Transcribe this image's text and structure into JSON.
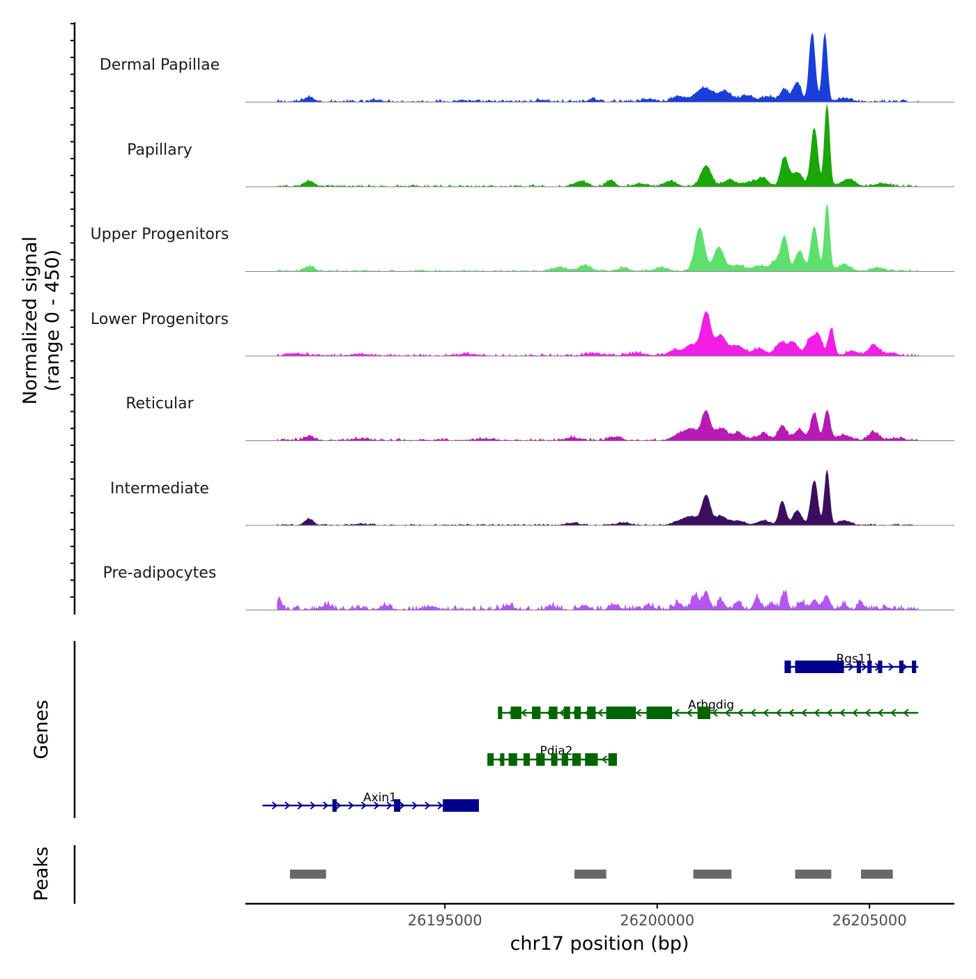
{
  "chart_data": {
    "type": "area",
    "title": "",
    "xlabel": "chr17 position (bp)",
    "ylabel": "Normalized signal\n(range 0 - 450)",
    "ylabel_lines": [
      "Normalized signal",
      "(range 0 - 450)"
    ],
    "ylim": [
      0,
      450
    ],
    "xlim": [
      26190300,
      26207000
    ],
    "x_ticks": [
      26195000,
      26200000,
      26205000
    ],
    "x_tick_labels": [
      "26195000",
      "26200000",
      "26205000"
    ],
    "region_start": 26191050,
    "region_end": 26206150,
    "baseline_color": "#808080",
    "tracks": [
      {
        "name": "Dermal Papillae",
        "color": "#1a3fd9",
        "noise": 9,
        "peaks": [
          [
            26191800,
            25,
            120
          ],
          [
            26193400,
            10,
            120
          ],
          [
            26195400,
            8,
            120
          ],
          [
            26197300,
            10,
            120
          ],
          [
            26198500,
            12,
            120
          ],
          [
            26199800,
            15,
            150
          ],
          [
            26200500,
            30,
            150
          ],
          [
            26201100,
            75,
            200
          ],
          [
            26201600,
            55,
            150
          ],
          [
            26202100,
            35,
            150
          ],
          [
            26202600,
            28,
            150
          ],
          [
            26203000,
            65,
            100
          ],
          [
            26203300,
            105,
            90
          ],
          [
            26203650,
            375,
            70
          ],
          [
            26203950,
            370,
            60
          ],
          [
            26204400,
            20,
            150
          ]
        ]
      },
      {
        "name": "Papillary",
        "color": "#1ba60a",
        "noise": 7,
        "peaks": [
          [
            26191800,
            30,
            120
          ],
          [
            26198200,
            30,
            150
          ],
          [
            26198900,
            35,
            100
          ],
          [
            26199600,
            15,
            150
          ],
          [
            26200300,
            30,
            150
          ],
          [
            26201150,
            115,
            120
          ],
          [
            26201700,
            35,
            150
          ],
          [
            26202200,
            25,
            150
          ],
          [
            26202500,
            45,
            120
          ],
          [
            26203000,
            160,
            90
          ],
          [
            26203300,
            75,
            120
          ],
          [
            26203700,
            320,
            80
          ],
          [
            26204000,
            445,
            60
          ],
          [
            26204500,
            40,
            150
          ],
          [
            26205300,
            15,
            200
          ]
        ]
      },
      {
        "name": "Upper Progenitors",
        "color": "#5de06e",
        "noise": 7,
        "peaks": [
          [
            26191800,
            25,
            120
          ],
          [
            26197700,
            22,
            150
          ],
          [
            26198300,
            28,
            150
          ],
          [
            26199200,
            20,
            120
          ],
          [
            26200100,
            20,
            150
          ],
          [
            26201000,
            240,
            110
          ],
          [
            26201450,
            130,
            120
          ],
          [
            26201900,
            35,
            150
          ],
          [
            26202400,
            30,
            150
          ],
          [
            26202800,
            55,
            120
          ],
          [
            26203000,
            180,
            80
          ],
          [
            26203350,
            110,
            100
          ],
          [
            26203700,
            245,
            80
          ],
          [
            26204000,
            365,
            60
          ],
          [
            26204400,
            35,
            150
          ],
          [
            26205200,
            20,
            150
          ]
        ]
      },
      {
        "name": "Lower Progenitors",
        "color": "#f21ee6",
        "noise": 9,
        "peaks": [
          [
            26191500,
            12,
            200
          ],
          [
            26193000,
            10,
            200
          ],
          [
            26195500,
            10,
            200
          ],
          [
            26198500,
            12,
            200
          ],
          [
            26199500,
            14,
            200
          ],
          [
            26200400,
            30,
            150
          ],
          [
            26200800,
            60,
            150
          ],
          [
            26201150,
            235,
            110
          ],
          [
            26201500,
            110,
            130
          ],
          [
            26201900,
            55,
            150
          ],
          [
            26202400,
            40,
            150
          ],
          [
            26202900,
            70,
            120
          ],
          [
            26203200,
            75,
            120
          ],
          [
            26203600,
            90,
            100
          ],
          [
            26203800,
            110,
            90
          ],
          [
            26204100,
            150,
            70
          ],
          [
            26204600,
            25,
            150
          ],
          [
            26205100,
            60,
            120
          ],
          [
            26205500,
            15,
            150
          ]
        ]
      },
      {
        "name": "Reticular",
        "color": "#b81ab5",
        "noise": 9,
        "peaks": [
          [
            26191800,
            22,
            120
          ],
          [
            26193000,
            10,
            200
          ],
          [
            26196000,
            8,
            200
          ],
          [
            26198000,
            16,
            150
          ],
          [
            26199000,
            18,
            150
          ],
          [
            26200500,
            30,
            150
          ],
          [
            26200800,
            60,
            150
          ],
          [
            26201150,
            160,
            100
          ],
          [
            26201500,
            65,
            130
          ],
          [
            26201900,
            40,
            150
          ],
          [
            26202500,
            35,
            150
          ],
          [
            26202950,
            80,
            100
          ],
          [
            26203350,
            60,
            120
          ],
          [
            26203700,
            150,
            80
          ],
          [
            26204000,
            165,
            70
          ],
          [
            26204400,
            30,
            150
          ],
          [
            26205100,
            45,
            120
          ],
          [
            26205600,
            12,
            150
          ]
        ]
      },
      {
        "name": "Intermediate",
        "color": "#3b0f5e",
        "noise": 5,
        "peaks": [
          [
            26191800,
            35,
            100
          ],
          [
            26193000,
            6,
            200
          ],
          [
            26198000,
            12,
            150
          ],
          [
            26199200,
            14,
            150
          ],
          [
            26200500,
            20,
            150
          ],
          [
            26200800,
            45,
            150
          ],
          [
            26201150,
            160,
            100
          ],
          [
            26201500,
            50,
            130
          ],
          [
            26201900,
            25,
            150
          ],
          [
            26202500,
            25,
            150
          ],
          [
            26202950,
            130,
            80
          ],
          [
            26203300,
            80,
            100
          ],
          [
            26203700,
            245,
            80
          ],
          [
            26204000,
            295,
            60
          ],
          [
            26204400,
            25,
            150
          ]
        ]
      },
      {
        "name": "Pre-adipocytes",
        "color": "#b356f2",
        "noise": 18,
        "peaks": [
          [
            26191100,
            60,
            60
          ],
          [
            26192200,
            25,
            100
          ],
          [
            26193600,
            25,
            100
          ],
          [
            26194700,
            20,
            100
          ],
          [
            26196500,
            25,
            100
          ],
          [
            26197500,
            22,
            100
          ],
          [
            26198300,
            20,
            100
          ],
          [
            26199000,
            30,
            100
          ],
          [
            26199800,
            25,
            100
          ],
          [
            26200500,
            35,
            100
          ],
          [
            26200900,
            80,
            80
          ],
          [
            26201150,
            105,
            70
          ],
          [
            26201500,
            50,
            80
          ],
          [
            26201900,
            45,
            80
          ],
          [
            26202350,
            70,
            70
          ],
          [
            26202700,
            35,
            80
          ],
          [
            26203000,
            90,
            70
          ],
          [
            26203400,
            40,
            80
          ],
          [
            26203700,
            55,
            80
          ],
          [
            26204000,
            75,
            70
          ],
          [
            26204400,
            30,
            80
          ],
          [
            26204800,
            35,
            80
          ],
          [
            26205400,
            10,
            100
          ]
        ]
      }
    ],
    "genes": [
      {
        "name": "Rgs11",
        "strand": "+",
        "color": "#00008b",
        "start": 26203000,
        "end": 26206150,
        "exons": [
          [
            26203000,
            26203150
          ],
          [
            26203250,
            26204400
          ],
          [
            26204700,
            26204800
          ],
          [
            26204950,
            26205050
          ],
          [
            26205200,
            26205300
          ],
          [
            26205700,
            26205800
          ],
          [
            26206000,
            26206100
          ]
        ]
      },
      {
        "name": "Arhgdig",
        "strand": "-",
        "color": "#006400",
        "start": 26196250,
        "end": 26206150,
        "exons": [
          [
            26196250,
            26196350
          ],
          [
            26196550,
            26196800
          ],
          [
            26197050,
            26197250
          ],
          [
            26197450,
            26197650
          ],
          [
            26197800,
            26197950
          ],
          [
            26198050,
            26198200
          ],
          [
            26198350,
            26198550
          ],
          [
            26198800,
            26199500
          ],
          [
            26199750,
            26200350
          ],
          [
            26200950,
            26201250
          ]
        ]
      },
      {
        "name": "Pdia2",
        "strand": "-",
        "color": "#006400",
        "start": 26196000,
        "end": 26199050,
        "exons": [
          [
            26196000,
            26196150
          ],
          [
            26196300,
            26196400
          ],
          [
            26196500,
            26196700
          ],
          [
            26196850,
            26197000
          ],
          [
            26197150,
            26197350
          ],
          [
            26197500,
            26197650
          ],
          [
            26197750,
            26197900
          ],
          [
            26198000,
            26198200
          ],
          [
            26198300,
            26198600
          ],
          [
            26198850,
            26199050
          ]
        ]
      },
      {
        "name": "Axin1",
        "strand": "+",
        "color": "#00008b",
        "start": 26190700,
        "end": 26195800,
        "exons": [
          [
            26192350,
            26192450
          ],
          [
            26193800,
            26193950
          ],
          [
            26194950,
            26195800
          ]
        ]
      }
    ],
    "peaks_track": [
      [
        26191350,
        26192200
      ],
      [
        26198050,
        26198800
      ],
      [
        26200850,
        26201750
      ],
      [
        26203250,
        26204100
      ],
      [
        26204800,
        26205550
      ]
    ]
  },
  "labels": {
    "genes_axis": "Genes",
    "peaks_axis": "Peaks"
  }
}
